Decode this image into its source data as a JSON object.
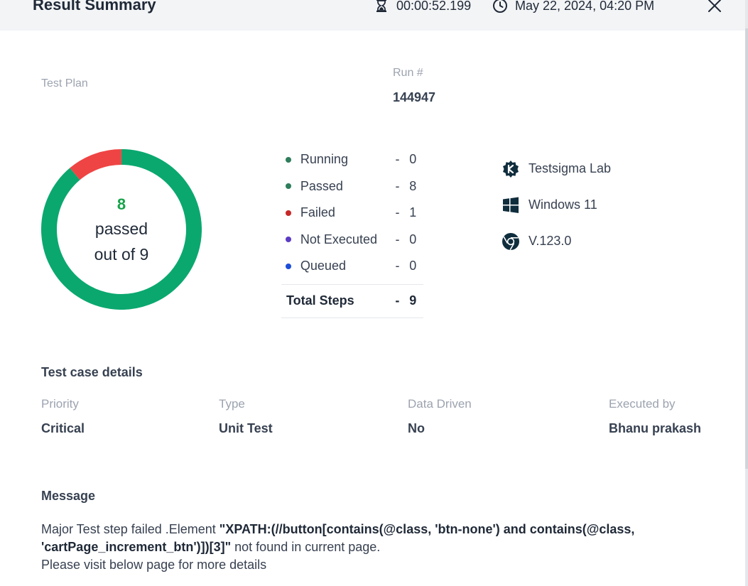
{
  "header": {
    "title": "Result Summary",
    "duration": "00:00:52.199",
    "datetime": "May 22, 2024, 04:20 PM"
  },
  "summary": {
    "test_plan_label": "Test Plan",
    "run_label": "Run #",
    "run_value": "144947"
  },
  "donut": {
    "passed_count": "8",
    "passed_label": "passed",
    "total_label": "out of 9",
    "passed": 8,
    "failed": 1,
    "total": 9,
    "colors": {
      "passed": "#0aa86f",
      "failed": "#ef4444"
    }
  },
  "status": {
    "items": [
      {
        "label": "Running",
        "dash": "-",
        "count": "0",
        "color": "#2e7d5b"
      },
      {
        "label": "Passed",
        "dash": "-",
        "count": "8",
        "color": "#2e7d5b"
      },
      {
        "label": "Failed",
        "dash": "-",
        "count": "1",
        "color": "#c62828"
      },
      {
        "label": "Not Executed",
        "dash": "-",
        "count": "0",
        "color": "#5b3cc4"
      },
      {
        "label": "Queued",
        "dash": "-",
        "count": "0",
        "color": "#1d4ed8"
      }
    ],
    "total_label": "Total Steps",
    "total_dash": "-",
    "total_count": "9"
  },
  "environment": {
    "lab": "Testsigma Lab",
    "os": "Windows 11",
    "browser": "V.123.0",
    "icons": [
      "testsigma-icon",
      "windows-icon",
      "chrome-icon"
    ]
  },
  "details": {
    "title": "Test case details",
    "priority_label": "Priority",
    "priority_value": "Critical",
    "type_label": "Type",
    "type_value": "Unit Test",
    "data_driven_label": "Data Driven",
    "data_driven_value": "No",
    "executed_by_label": "Executed by",
    "executed_by_value": "Bhanu prakash"
  },
  "message": {
    "title": "Message",
    "prefix": "Major Test step failed .Element ",
    "locator": "\"XPATH:(//button[contains(@class, 'btn-none') and contains(@class, 'cartPage_increment_btn')])[3]\"",
    "suffix": " not found in current page.",
    "line2": "Please visit below page for more details"
  }
}
